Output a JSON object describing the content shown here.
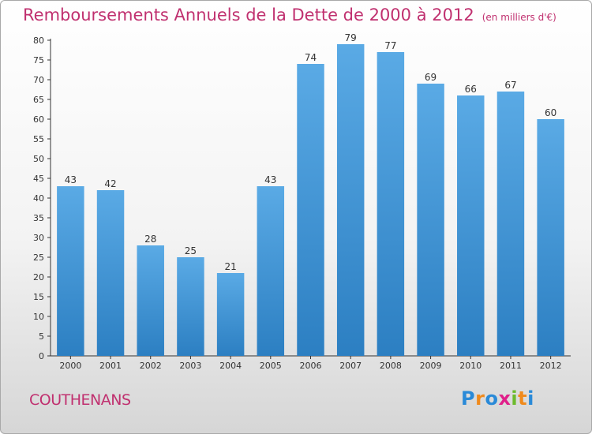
{
  "chart_data": {
    "type": "bar",
    "title": "Remboursements Annuels de la Dette de 2000 à 2012",
    "unit_note": "(en milliers d'€)",
    "categories": [
      "2000",
      "2001",
      "2002",
      "2003",
      "2004",
      "2005",
      "2006",
      "2007",
      "2008",
      "2009",
      "2010",
      "2011",
      "2012"
    ],
    "values": [
      43,
      42,
      28,
      25,
      21,
      43,
      74,
      79,
      77,
      69,
      66,
      67,
      60
    ],
    "ylim": [
      0,
      80
    ],
    "yticks": [
      0,
      5,
      10,
      15,
      20,
      25,
      30,
      35,
      40,
      45,
      50,
      55,
      60,
      65,
      70,
      75,
      80
    ],
    "grid": false,
    "bar_color": "#5aaae5",
    "bar_color_dark": "#2c7fc2"
  },
  "commune": "COUTHENANS",
  "logo": {
    "letters": [
      "P",
      "r",
      "o",
      "x",
      "i",
      "t",
      "i"
    ],
    "colors": [
      "#2a8ad8",
      "#f08a1c",
      "#2a8ad8",
      "#e0208a",
      "#6cba2c",
      "#f08a1c",
      "#2a8ad8"
    ]
  }
}
